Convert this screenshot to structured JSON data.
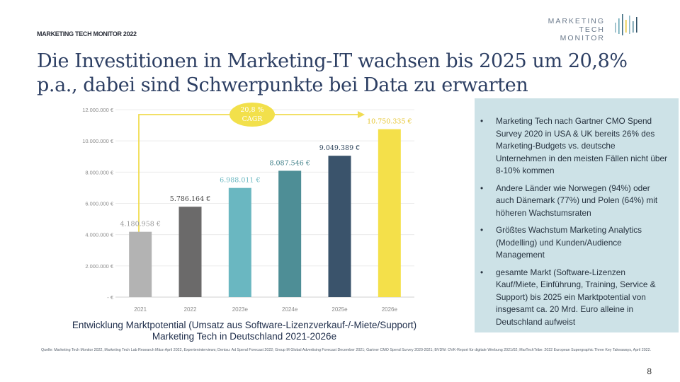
{
  "header_label": "MARKETING TECH MONITOR 2022",
  "logo": {
    "line1": "MARKETING",
    "line2": "TECH",
    "line3": "MONITOR"
  },
  "title_line1": "Die Investitionen in Marketing-IT wachsen bis 2025 um 20,8%",
  "title_line2": "p.a., dabei sind Schwerpunkte bei Data zu erwarten",
  "cagr_label_line1": "20,8 %",
  "cagr_label_line2": "CAGR",
  "caption_line1": "Entwicklung Marktpotential (Umsatz aus Software-Lizenzverkauf-/-Miete/Support)",
  "caption_line2": "Marketing Tech in Deutschland 2021-2026e",
  "bullets": [
    {
      "bullet": "•",
      "text": "Marketing Tech nach Gartner CMO Spend Survey 2020 in USA & UK bereits 26% des Marketing-Budgets vs. deutsche Unternehmen in den meisten Fällen nicht über 8-10% kommen"
    },
    {
      "bullet": "•",
      "text": "Andere Länder wie Norwegen (94%) oder auch Dänemark (77%) und Polen (64%) mit höheren Wachstumsraten"
    },
    {
      "bullet": "•",
      "text": "Größtes Wachstum Marketing Analytics (Modelling) und Kunden/Audience Management"
    },
    {
      "bullet": "•",
      "text": "gesamte Markt (Software-Lizenzen Kauf/Miete, Einführung, Training, Service & Support) bis 2025 ein Marktpotential von insgesamt ca. 20 Mrd. Euro alleine in Deutschland aufweist"
    }
  ],
  "source": "Quelle: Marketing Tech Monitor 2022, Marketing Tech Lab Research März-April 2022, Experteninterviews; Dentsu: Ad Spend Forecast 2022; Group M Global Advertising Forecast December 2021; Gartner CMO Spend Survey 2020-2021; BVDW: OVK-Report für digitale Werbung 2021/02; MarTechTribe: 2022 European Supergraphic Three Key Takeaways, April 2022.",
  "page_number": "8",
  "colors": {
    "title": "#2d3f63",
    "panel": "#cde2e7",
    "cagr": "#f2e04b",
    "arrow": "#f0dc52"
  },
  "chart_data": {
    "type": "bar",
    "categories": [
      "2021",
      "2022",
      "2023e",
      "2024e",
      "2025e",
      "2026e"
    ],
    "values": [
      4180958,
      5786164,
      6988011,
      8087546,
      9049389,
      10750335
    ],
    "value_labels": [
      "4.180.958 €",
      "5.786.164 €",
      "6.988.011 €",
      "8.087.546 €",
      "9.049.389 €",
      "10.750.335 €"
    ],
    "colors": [
      "#b3b3b3",
      "#6b6a6a",
      "#6ab7c1",
      "#4e8e96",
      "#3a536b",
      "#f4e04a"
    ],
    "ylim": [
      0,
      12000000
    ],
    "yticks": [
      0,
      2000000,
      4000000,
      6000000,
      8000000,
      10000000,
      12000000
    ],
    "ytick_labels": [
      "- €",
      "2.000.000 €",
      "4.000.000 €",
      "6.000.000 €",
      "8.000.000 €",
      "10.000.000 €",
      "12.000.000 €"
    ],
    "grid": true,
    "title": "",
    "xlabel": "",
    "ylabel": ""
  }
}
